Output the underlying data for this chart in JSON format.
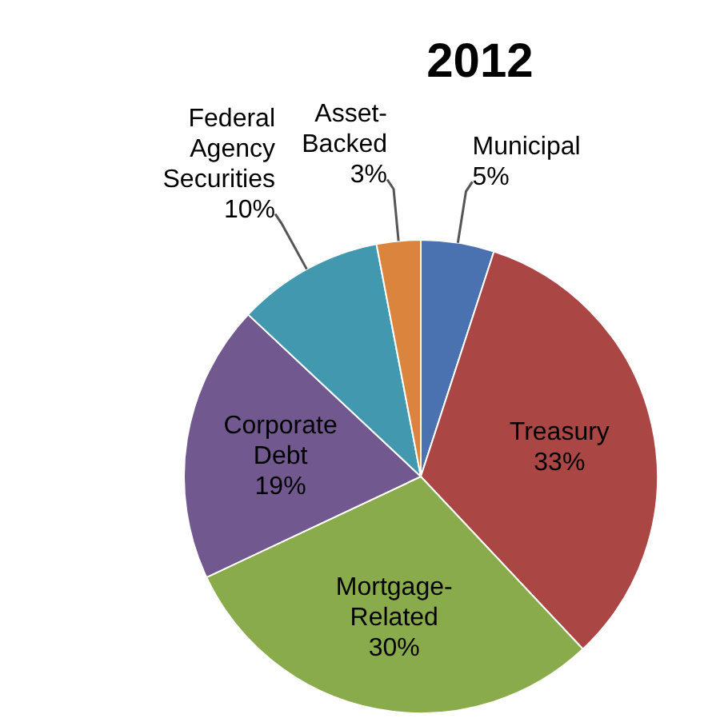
{
  "chart_data": {
    "type": "pie",
    "title": "2012",
    "categories": [
      "Municipal",
      "Treasury",
      "Mortgage-Related",
      "Corporate Debt",
      "Federal Agency Securities",
      "Asset-Backed"
    ],
    "values": [
      5,
      33,
      30,
      19,
      10,
      3
    ],
    "value_labels": [
      "5%",
      "33%",
      "30%",
      "19%",
      "10%",
      "3%"
    ],
    "colors": [
      "#4a72b0",
      "#aa4644",
      "#8aab4b",
      "#71588f",
      "#4298af",
      "#db843d"
    ],
    "legend": false
  }
}
